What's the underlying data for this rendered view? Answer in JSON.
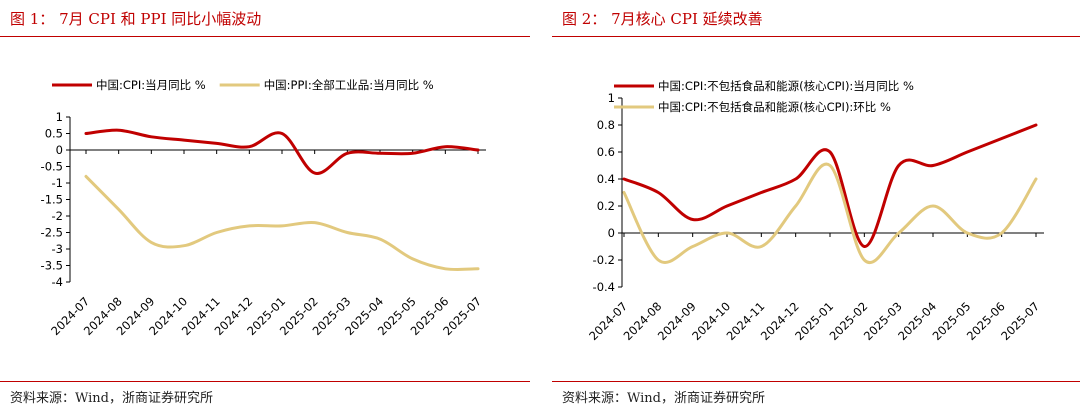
{
  "figures": [
    {
      "title": "图 1：  7月 CPI 和 PPI 同比小幅波动",
      "source": "资料来源：Wind，浙商证券研究所",
      "chart_data": {
        "type": "line",
        "title": "图 1：  7月 CPI 和 PPI 同比小幅波动",
        "xlabel": "",
        "ylabel": "",
        "categories": [
          "2024-07",
          "2024-08",
          "2024-09",
          "2024-10",
          "2024-11",
          "2024-12",
          "2025-01",
          "2025-02",
          "2025-03",
          "2025-04",
          "2025-05",
          "2025-06",
          "2025-07"
        ],
        "ylim": [
          -4,
          1
        ],
        "yticks": [
          "1",
          "0.5",
          "0",
          "-0.5",
          "-1",
          "-1.5",
          "-2",
          "-2.5",
          "-3",
          "-3.5",
          "-4"
        ],
        "grid": false,
        "legend_position": "top",
        "series": [
          {
            "name": "中国:CPI:当月同比 %",
            "color": "#c00000",
            "values": [
              0.5,
              0.6,
              0.4,
              0.3,
              0.2,
              0.1,
              0.5,
              -0.7,
              -0.1,
              -0.1,
              -0.1,
              0.1,
              0.0
            ]
          },
          {
            "name": "中国:PPI:全部工业品:当月同比 %",
            "color": "#e2c97e",
            "values": [
              -0.8,
              -1.8,
              -2.8,
              -2.9,
              -2.5,
              -2.3,
              -2.3,
              -2.2,
              -2.5,
              -2.7,
              -3.3,
              -3.6,
              -3.6
            ]
          }
        ]
      }
    },
    {
      "title": "图 2：  7月核心 CPI 延续改善",
      "source": "资料来源：Wind，浙商证券研究所",
      "chart_data": {
        "type": "line",
        "title": "图 2：  7月核心 CPI 延续改善",
        "xlabel": "",
        "ylabel": "",
        "categories": [
          "2024-07",
          "2024-08",
          "2024-09",
          "2024-10",
          "2024-11",
          "2024-12",
          "2025-01",
          "2025-02",
          "2025-03",
          "2025-04",
          "2025-05",
          "2025-06",
          "2025-07"
        ],
        "ylim": [
          -0.4,
          1
        ],
        "yticks": [
          "1",
          "0.8",
          "0.6",
          "0.4",
          "0.2",
          "0",
          "-0.2",
          "-0.4"
        ],
        "grid": false,
        "legend_position": "top",
        "series": [
          {
            "name": "中国:CPI:不包括食品和能源(核心CPI):当月同比 %",
            "color": "#c00000",
            "values": [
              0.4,
              0.3,
              0.1,
              0.2,
              0.3,
              0.4,
              0.6,
              -0.1,
              0.5,
              0.5,
              0.6,
              0.7,
              0.8
            ]
          },
          {
            "name": "中国:CPI:不包括食品和能源(核心CPI):环比 %",
            "color": "#e2c97e",
            "values": [
              0.3,
              -0.2,
              -0.1,
              0.0,
              -0.1,
              0.2,
              0.5,
              -0.2,
              0.0,
              0.2,
              0.0,
              0.0,
              0.4
            ]
          }
        ]
      }
    }
  ]
}
